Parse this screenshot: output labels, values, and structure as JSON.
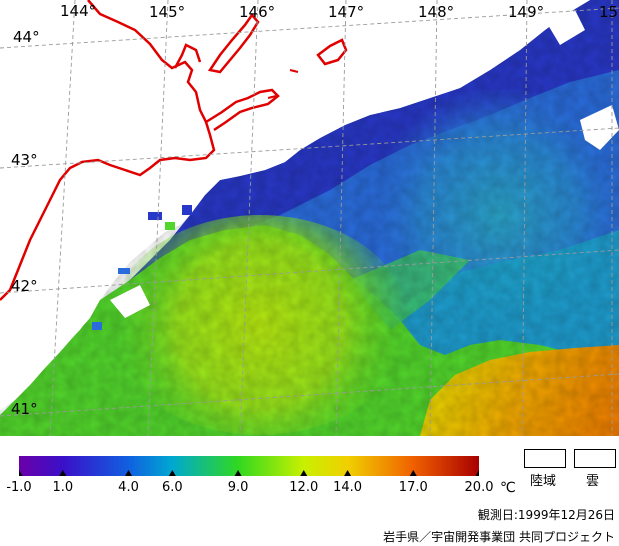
{
  "map": {
    "longitude_labels": [
      "144°",
      "145°",
      "146°",
      "147°",
      "148°",
      "149°",
      "15"
    ],
    "latitude_labels": [
      "44°",
      "43°",
      "42°",
      "41°"
    ],
    "coastline_color": "#e00000",
    "grid_color": "#9a9a9a"
  },
  "colorbar": {
    "min": -1.0,
    "max": 20.0,
    "tick_labels": [
      "-1.0",
      "1.0",
      "4.0",
      "6.0",
      "9.0",
      "12.0",
      "14.0",
      "17.0",
      "20.0"
    ],
    "tick_values": [
      -1.0,
      1.0,
      4.0,
      6.0,
      9.0,
      12.0,
      14.0,
      17.0,
      20.0
    ],
    "unit": "℃",
    "stops": [
      {
        "v": -1.0,
        "c": "#6a00a8"
      },
      {
        "v": 1.0,
        "c": "#3a10c8"
      },
      {
        "v": 4.0,
        "c": "#1060e0"
      },
      {
        "v": 6.0,
        "c": "#00a8d0"
      },
      {
        "v": 9.0,
        "c": "#30d820"
      },
      {
        "v": 12.0,
        "c": "#c8f000"
      },
      {
        "v": 14.0,
        "c": "#f0d000"
      },
      {
        "v": 17.0,
        "c": "#f06000"
      },
      {
        "v": 20.0,
        "c": "#a80000"
      }
    ]
  },
  "legend": {
    "land_label": "陸域",
    "cloud_label": "雲"
  },
  "info": {
    "observation_date": "観測日:1999年12月26日",
    "credit": "岩手県／宇宙開発事業団 共同プロジェクト"
  }
}
